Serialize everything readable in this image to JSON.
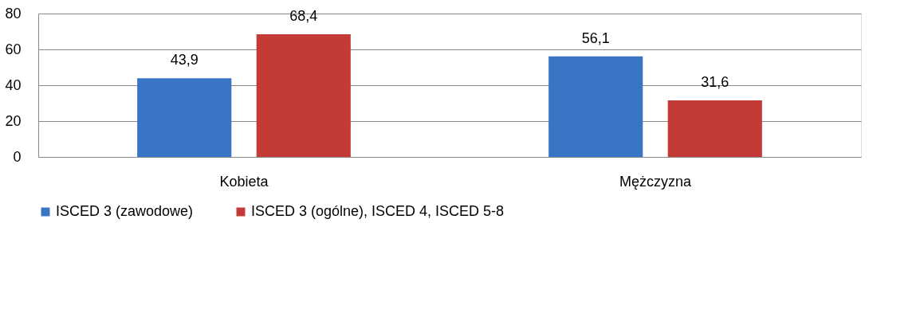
{
  "chart_data": {
    "type": "bar",
    "categories": [
      "Kobieta",
      "Mężczyzna"
    ],
    "series": [
      {
        "name": "ISCED 3 (zawodowe)",
        "color": "#3a74c4",
        "values": [
          43.9,
          56.1
        ],
        "value_labels": [
          "43,9",
          "56,1"
        ]
      },
      {
        "name": "ISCED 3 (ogólne), ISCED 4, ISCED 5-8",
        "color": "#c43a37",
        "values": [
          68.4,
          31.6
        ],
        "value_labels": [
          "68,4",
          "31,6"
        ]
      }
    ],
    "ylim": [
      0,
      80
    ],
    "yticks": [
      0,
      20,
      40,
      60,
      80
    ],
    "grid": "y",
    "legend": "bottom"
  }
}
